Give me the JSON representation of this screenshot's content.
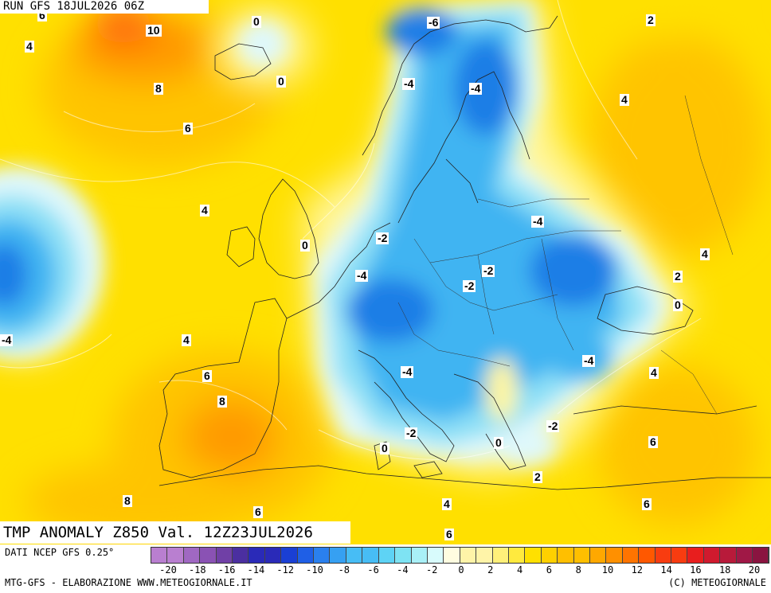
{
  "header": {
    "run_title": "RUN GFS 18JUL2026 06Z"
  },
  "map": {
    "field_title": "TMP ANOMALY Z850 Val. 12Z23JUL2026",
    "contour_labels": [
      "6",
      "10",
      "0",
      "-6",
      "2",
      "4",
      "0",
      "-4",
      "-4",
      "8",
      "6",
      "4",
      "4",
      "-4",
      "-2",
      "0",
      "4",
      "2",
      "-4",
      "-2",
      "-2",
      "0",
      "-4",
      "4",
      "-4",
      "6",
      "8",
      "-4",
      "-2",
      "0",
      "-2",
      "0",
      "6",
      "2",
      "8",
      "6",
      "4",
      "6",
      "4"
    ]
  },
  "footer": {
    "source": "DATI NCEP GFS 0.25°",
    "producer": "MTG-GFS - ELABORAZIONE WWW.METEOGIORNALE.IT",
    "copyright": "(C) METEOGIORNALE"
  },
  "legend": {
    "ticks": [
      "-20",
      "-18",
      "-16",
      "-14",
      "-12",
      "-10",
      "-8",
      "-6",
      "-4",
      "-2",
      "0",
      "2",
      "4",
      "6",
      "8",
      "10",
      "12",
      "14",
      "16",
      "18",
      "20"
    ],
    "colors": [
      "#b97fd0",
      "#a068c2",
      "#8a52b4",
      "#7040a6",
      "#4b2fa0",
      "#2a2ab8",
      "#1a3fd4",
      "#1f5fe6",
      "#2a80ee",
      "#36a0f2",
      "#47bdf5",
      "#5ed3f5",
      "#7ee3f3",
      "#a9f0f7",
      "#d8fbfc",
      "#fffde0",
      "#fff4a8",
      "#fff07a",
      "#ffea3e",
      "#ffe000",
      "#ffd000",
      "#ffbf00",
      "#ffa800",
      "#ff9000",
      "#ff7400",
      "#ff5800",
      "#f83c10",
      "#e81e1e",
      "#d01a2e",
      "#b81a3a",
      "#a01846",
      "#8a1440"
    ],
    "colors_note": ""
  },
  "colors": {
    "cold_core": "#1e7ee6",
    "cold_mid": "#3fb4f2",
    "cold_light": "#8ee0f6",
    "neutral": "#dff8fb",
    "warm_light": "#fff7a0",
    "warm": "#ffe200",
    "warm_strong": "#ffc400",
    "hot": "#ff9a00",
    "very_hot": "#ff5a10"
  }
}
